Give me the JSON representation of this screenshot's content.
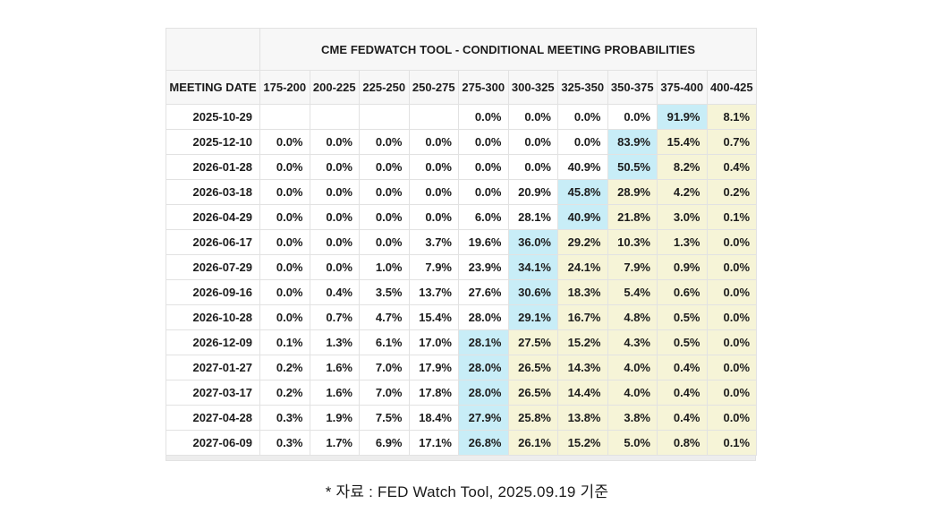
{
  "chart_data": {
    "type": "table",
    "title": "CME FEDWATCH TOOL - CONDITIONAL MEETING PROBABILITIES",
    "row_header_label": "MEETING DATE",
    "rate_range_columns": [
      "175-200",
      "200-225",
      "225-250",
      "250-275",
      "275-300",
      "300-325",
      "325-350",
      "350-375",
      "375-400",
      "400-425"
    ],
    "rows": [
      {
        "date": "2025-10-29",
        "values": [
          "",
          "",
          "",
          "",
          "0.0%",
          "0.0%",
          "0.0%",
          "0.0%",
          "91.9%",
          "8.1%"
        ],
        "max_index": 8
      },
      {
        "date": "2025-12-10",
        "values": [
          "0.0%",
          "0.0%",
          "0.0%",
          "0.0%",
          "0.0%",
          "0.0%",
          "0.0%",
          "83.9%",
          "15.4%",
          "0.7%"
        ],
        "max_index": 7
      },
      {
        "date": "2026-01-28",
        "values": [
          "0.0%",
          "0.0%",
          "0.0%",
          "0.0%",
          "0.0%",
          "0.0%",
          "40.9%",
          "50.5%",
          "8.2%",
          "0.4%"
        ],
        "max_index": 7
      },
      {
        "date": "2026-03-18",
        "values": [
          "0.0%",
          "0.0%",
          "0.0%",
          "0.0%",
          "0.0%",
          "20.9%",
          "45.8%",
          "28.9%",
          "4.2%",
          "0.2%"
        ],
        "max_index": 6
      },
      {
        "date": "2026-04-29",
        "values": [
          "0.0%",
          "0.0%",
          "0.0%",
          "0.0%",
          "6.0%",
          "28.1%",
          "40.9%",
          "21.8%",
          "3.0%",
          "0.1%"
        ],
        "max_index": 6
      },
      {
        "date": "2026-06-17",
        "values": [
          "0.0%",
          "0.0%",
          "0.0%",
          "3.7%",
          "19.6%",
          "36.0%",
          "29.2%",
          "10.3%",
          "1.3%",
          "0.0%"
        ],
        "max_index": 5
      },
      {
        "date": "2026-07-29",
        "values": [
          "0.0%",
          "0.0%",
          "1.0%",
          "7.9%",
          "23.9%",
          "34.1%",
          "24.1%",
          "7.9%",
          "0.9%",
          "0.0%"
        ],
        "max_index": 5
      },
      {
        "date": "2026-09-16",
        "values": [
          "0.0%",
          "0.4%",
          "3.5%",
          "13.7%",
          "27.6%",
          "30.6%",
          "18.3%",
          "5.4%",
          "0.6%",
          "0.0%"
        ],
        "max_index": 5
      },
      {
        "date": "2026-10-28",
        "values": [
          "0.0%",
          "0.7%",
          "4.7%",
          "15.4%",
          "28.0%",
          "29.1%",
          "16.7%",
          "4.8%",
          "0.5%",
          "0.0%"
        ],
        "max_index": 5
      },
      {
        "date": "2026-12-09",
        "values": [
          "0.1%",
          "1.3%",
          "6.1%",
          "17.0%",
          "28.1%",
          "27.5%",
          "15.2%",
          "4.3%",
          "0.5%",
          "0.0%"
        ],
        "max_index": 4
      },
      {
        "date": "2027-01-27",
        "values": [
          "0.2%",
          "1.6%",
          "7.0%",
          "17.9%",
          "28.0%",
          "26.5%",
          "14.3%",
          "4.0%",
          "0.4%",
          "0.0%"
        ],
        "max_index": 4
      },
      {
        "date": "2027-03-17",
        "values": [
          "0.2%",
          "1.6%",
          "7.0%",
          "17.8%",
          "28.0%",
          "26.5%",
          "14.4%",
          "4.0%",
          "0.4%",
          "0.0%"
        ],
        "max_index": 4
      },
      {
        "date": "2027-04-28",
        "values": [
          "0.3%",
          "1.9%",
          "7.5%",
          "18.4%",
          "27.9%",
          "25.8%",
          "13.8%",
          "3.8%",
          "0.4%",
          "0.0%"
        ],
        "max_index": 4
      },
      {
        "date": "2027-06-09",
        "values": [
          "0.3%",
          "1.7%",
          "6.9%",
          "17.1%",
          "26.8%",
          "26.1%",
          "15.2%",
          "5.0%",
          "0.8%",
          "0.1%"
        ],
        "max_index": 4
      }
    ],
    "colors": {
      "max_cell_highlight": "#c8edf7",
      "right_tail_highlight": "#f6f4d7",
      "header_background": "#f7f7f7",
      "border": "#e2e2e2"
    },
    "layout": {
      "legend": "none",
      "grid": "on"
    }
  },
  "caption": {
    "note": "* 자료 : FED Watch Tool, 2025.09.19 기준"
  }
}
